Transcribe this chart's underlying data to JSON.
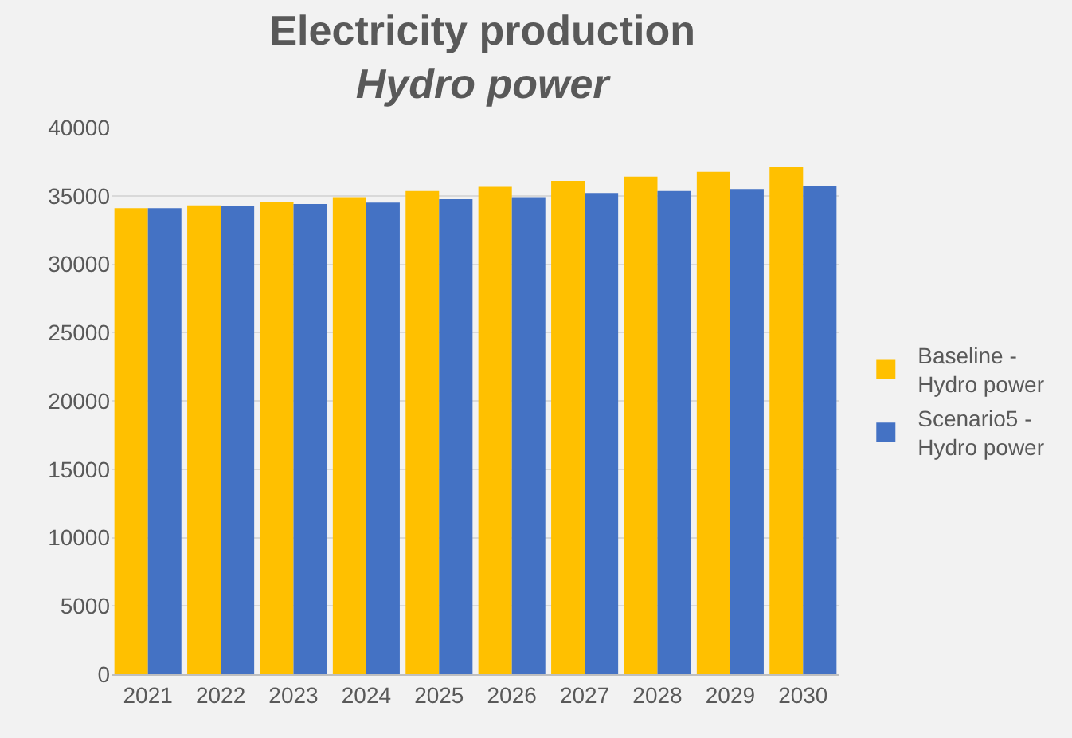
{
  "chart_data": {
    "type": "bar",
    "title": "Electricity production",
    "subtitle": "Hydro power",
    "categories": [
      "2021",
      "2022",
      "2023",
      "2024",
      "2025",
      "2026",
      "2027",
      "2028",
      "2029",
      "2030"
    ],
    "series": [
      {
        "name": "Baseline -\nHydro power",
        "color": "#ffc000",
        "values": [
          34100,
          34300,
          34550,
          34900,
          35350,
          35650,
          36100,
          36400,
          36750,
          37150
        ]
      },
      {
        "name": "Scenario5 -\nHydro power",
        "color": "#4472c4",
        "values": [
          34100,
          34250,
          34400,
          34500,
          34750,
          34900,
          35200,
          35350,
          35500,
          35750
        ]
      }
    ],
    "ylim": [
      0,
      40000
    ],
    "yticks": [
      0,
      5000,
      10000,
      15000,
      20000,
      25000,
      30000,
      35000,
      40000
    ],
    "grid": "y",
    "legend": "right"
  }
}
